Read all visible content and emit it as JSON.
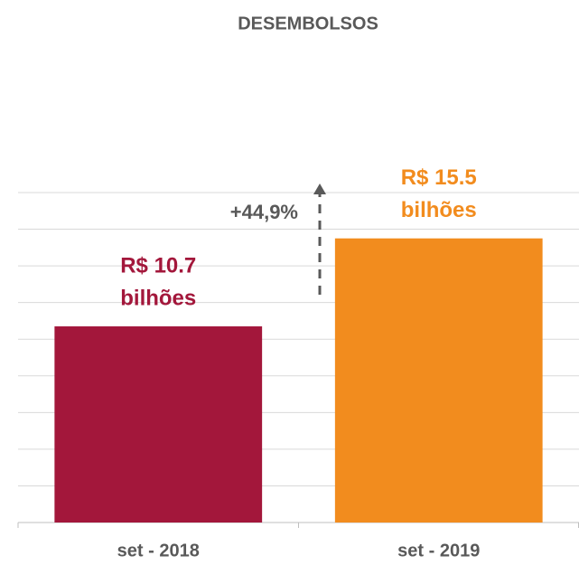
{
  "chart_data": {
    "type": "bar",
    "title": "DESEMBOLSOS",
    "categories": [
      "set - 2018",
      "set - 2019"
    ],
    "values": [
      10.7,
      15.5
    ],
    "value_labels": [
      [
        "R$ 10.7",
        "bilhões"
      ],
      [
        "R$ 15.5",
        "bilhões"
      ]
    ],
    "colors": [
      "#a3173b",
      "#f28c1e"
    ],
    "ylim": [
      0,
      18
    ],
    "yticks": [
      0,
      2,
      4,
      6,
      8,
      10,
      12,
      14,
      16,
      18
    ],
    "grid": true,
    "annotation": "+44,9%"
  }
}
